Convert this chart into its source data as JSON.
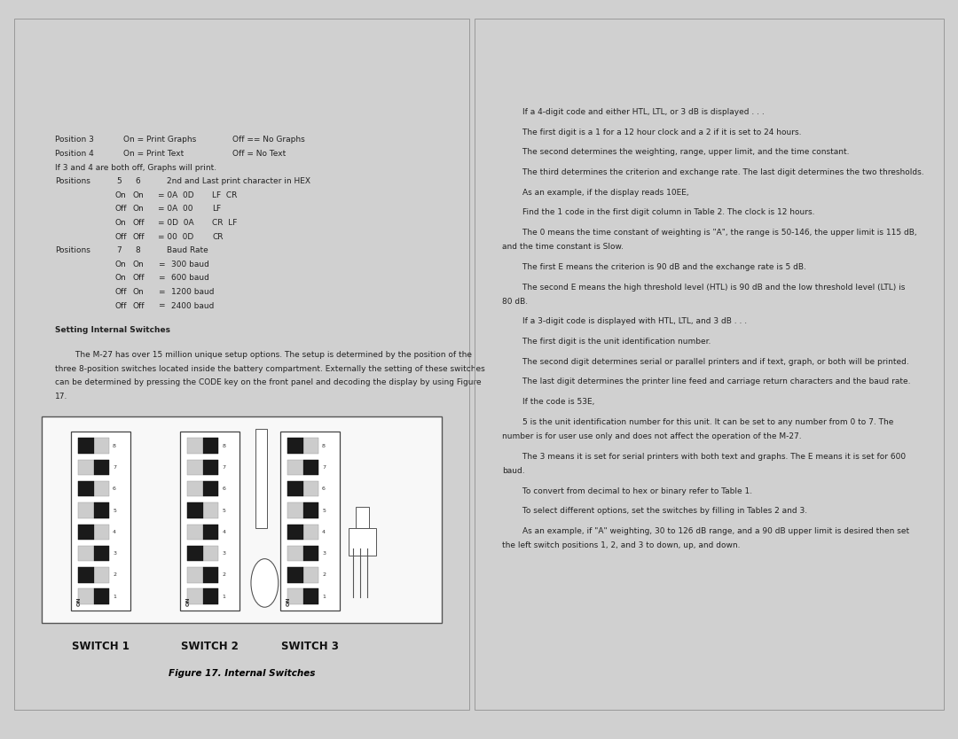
{
  "outer_bg": "#d0d0d0",
  "page_bg": "#ffffff",
  "page_border": "#888888",
  "left_page": {
    "top_text_lines": [
      [
        "Position 3",
        "On = Print Graphs",
        "Off == No Graphs"
      ],
      [
        "Position 4",
        "On = Print Text",
        "Off = No Text"
      ],
      [
        "If 3 and 4 are both off, Graphs will print."
      ],
      [
        "Positions",
        "5",
        "6",
        "2nd and Last print character in HEX"
      ],
      [
        "",
        "On",
        "On",
        "= 0A  0D",
        "LF  CR"
      ],
      [
        "",
        "Off",
        "On",
        "= 0A  00",
        "LF"
      ],
      [
        "",
        "On",
        "Off",
        "= 0D  0A",
        "CR  LF"
      ],
      [
        "",
        "Off",
        "Off",
        "= 00  0D",
        "CR"
      ],
      [
        "Positions",
        "7",
        "8",
        "Baud Rate"
      ],
      [
        "",
        "On",
        "On",
        "=",
        "300 baud"
      ],
      [
        "",
        "On",
        "Off",
        "=",
        "600 baud"
      ],
      [
        "",
        "Off",
        "On",
        "=  1200 baud"
      ],
      [
        "",
        "Off",
        "Off",
        "=  2400 baud"
      ]
    ],
    "section_heading": "Setting Internal Switches",
    "body_text": "        The M-27 has over 15 million unique setup options. The setup is determined by the position of the\nthree 8-position switches located inside the battery compartment. Externally the setting of these switches\ncan be determined by pressing the CODE key on the front panel and decoding the display by using Figure\n17.",
    "figure_caption": "Figure 17. Internal Switches",
    "switch_labels": [
      "SWITCH 1",
      "SWITCH 2",
      "SWITCH 3"
    ],
    "switch1_state": [
      1,
      0,
      1,
      0,
      1,
      0,
      1,
      0
    ],
    "switch2_state": [
      1,
      1,
      0,
      1,
      0,
      1,
      1,
      1
    ],
    "switch3_state": [
      1,
      0,
      1,
      0,
      1,
      0,
      1,
      0
    ]
  },
  "right_page": {
    "paragraphs": [
      "        If a 4-digit code and either HTL, LTL, or 3 dB is displayed . . .",
      "        The first digit is a 1 for a 12 hour clock and a 2 if it is set to 24 hours.",
      "        The second determines the weighting, range, upper limit, and the time constant.",
      "        The third determines the criterion and exchange rate. The last digit determines the two thresholds.",
      "        As an example, if the display reads 10EE,",
      "        Find the 1 code in the first digit column in Table 2. The clock is 12 hours.",
      "        The 0 means the time constant of weighting is \"A\", the range is 50-146, the upper limit is 115 dB,\nand the time constant is Slow.",
      "        The first E means the criterion is 90 dB and the exchange rate is 5 dB.",
      "        The second E means the high threshold level (HTL) is 90 dB and the low threshold level (LTL) is\n80 dB.",
      "        If a 3-digit code is displayed with HTL, LTL, and 3 dB . . .",
      "        The first digit is the unit identification number.",
      "        The second digit determines serial or parallel printers and if text, graph, or both will be printed.",
      "        The last digit determines the printer line feed and carriage return characters and the baud rate.",
      "        If the code is 53E,",
      "        5 is the unit identification number for this unit. It can be set to any number from 0 to 7. The\nnumber is for user use only and does not affect the operation of the M-27.",
      "        The 3 means it is set for serial printers with both text and graphs. The E means it is set for 600\nbaud.",
      "        To convert from decimal to hex or binary refer to Table 1.",
      "        To select different options, set the switches by filling in Tables 2 and 3.",
      "        As an example, if \"A\" weighting, 30 to 126 dB range, and a 90 dB upper limit is desired then set\nthe left switch positions 1, 2, and 3 to down, up, and down."
    ]
  }
}
